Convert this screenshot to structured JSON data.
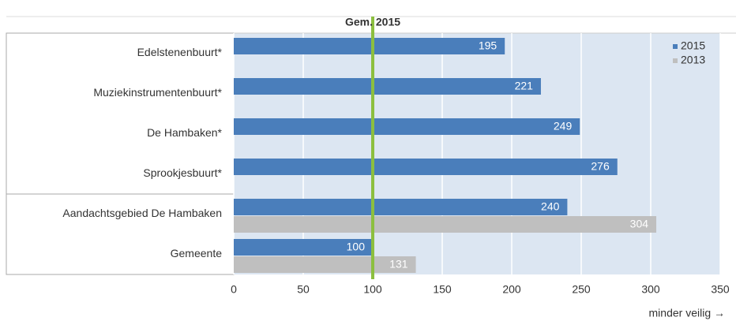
{
  "chart_data": {
    "type": "bar",
    "orientation": "horizontal",
    "x_label": "minder veilig →",
    "categories": [
      "Edelstenenbuurt*",
      "Muziekinstrumentenbuurt*",
      "De Hambaken*",
      "Sprookjesbuurt*",
      "Aandachtsgebied De Hambaken",
      "Gemeente"
    ],
    "series": [
      {
        "name": "2015",
        "color": "#4a7ebb",
        "values": [
          195,
          221,
          249,
          276,
          240,
          100
        ]
      },
      {
        "name": "2013",
        "color": "#bfbfbf",
        "values": [
          null,
          null,
          null,
          null,
          304,
          131
        ]
      }
    ],
    "xlim": [
      0,
      350
    ],
    "xticks": [
      0,
      50,
      100,
      150,
      200,
      250,
      300,
      350
    ],
    "grid": true,
    "reference": {
      "value": 100,
      "label": "Gem. 2015",
      "color": "#8cbf3f"
    },
    "legend": "top-right"
  }
}
